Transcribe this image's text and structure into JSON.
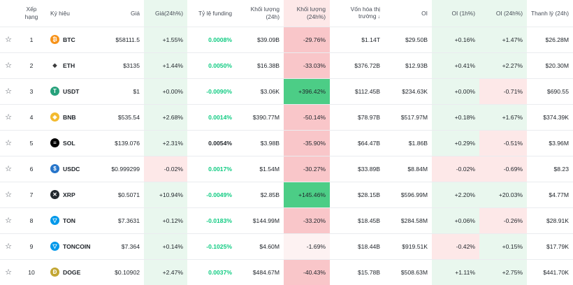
{
  "headers": {
    "rank": "Xếp hạng",
    "symbol": "Ký hiệu",
    "price": "Giá",
    "price_change": "Giá(24h%)",
    "funding": "Tỷ lệ funding",
    "volume": "Khối lượng (24h)",
    "volume_change": "Khối lượng (24h%)",
    "mcap_line1": "Vốn hóa thị",
    "mcap_line2": "trường",
    "oi": "OI",
    "oi_1h": "OI (1h%)",
    "oi_24h": "OI (24h%)",
    "liq": "Thanh lý (24h)"
  },
  "rows": [
    {
      "rank": "1",
      "symbol": "BTC",
      "price": "$58111.5",
      "price_change": "+1.55%",
      "funding": "0.0008%",
      "volume": "$39.09B",
      "volume_change": "-29.76%",
      "mcap": "$1.14T",
      "oi": "$29.50B",
      "oi_1h": "+0.16%",
      "oi_24h": "+1.47%",
      "liq": "$26.28M",
      "icon": "btc-icon",
      "color": "#f7931a",
      "glyph": "₿"
    },
    {
      "rank": "2",
      "symbol": "ETH",
      "price": "$3135",
      "price_change": "+1.44%",
      "funding": "0.0050%",
      "volume": "$16.38B",
      "volume_change": "-33.03%",
      "mcap": "$376.72B",
      "oi": "$12.93B",
      "oi_1h": "+0.41%",
      "oi_24h": "+2.27%",
      "liq": "$20.30M",
      "icon": "eth-icon",
      "color": "#ffffff",
      "glyph": "◆"
    },
    {
      "rank": "3",
      "symbol": "USDT",
      "price": "$1",
      "price_change": "+0.00%",
      "funding": "-0.0090%",
      "volume": "$3.06K",
      "volume_change": "+396.42%",
      "mcap": "$112.45B",
      "oi": "$234.63K",
      "oi_1h": "+0.00%",
      "oi_24h": "-0.71%",
      "liq": "$690.55",
      "icon": "usdt-icon",
      "color": "#26a17b",
      "glyph": "T"
    },
    {
      "rank": "4",
      "symbol": "BNB",
      "price": "$535.54",
      "price_change": "+2.68%",
      "funding": "0.0014%",
      "volume": "$390.77M",
      "volume_change": "-50.14%",
      "mcap": "$78.97B",
      "oi": "$517.97M",
      "oi_1h": "+0.18%",
      "oi_24h": "+1.67%",
      "liq": "$374.39K",
      "icon": "bnb-icon",
      "color": "#f3ba2f",
      "glyph": "◈"
    },
    {
      "rank": "5",
      "symbol": "SOL",
      "price": "$139.076",
      "price_change": "+2.31%",
      "funding": "0.0054%",
      "volume": "$3.98B",
      "volume_change": "-35.90%",
      "mcap": "$64.47B",
      "oi": "$1.86B",
      "oi_1h": "+0.29%",
      "oi_24h": "-0.51%",
      "liq": "$3.96M",
      "icon": "sol-icon",
      "color": "#000000",
      "glyph": "≡"
    },
    {
      "rank": "6",
      "symbol": "USDC",
      "price": "$0.999299",
      "price_change": "-0.02%",
      "funding": "0.0017%",
      "volume": "$1.54M",
      "volume_change": "-30.27%",
      "mcap": "$33.89B",
      "oi": "$8.84M",
      "oi_1h": "-0.02%",
      "oi_24h": "-0.69%",
      "liq": "$8.23",
      "icon": "usdc-icon",
      "color": "#2775ca",
      "glyph": "$"
    },
    {
      "rank": "7",
      "symbol": "XRP",
      "price": "$0.5071",
      "price_change": "+10.94%",
      "funding": "-0.0049%",
      "volume": "$2.85B",
      "volume_change": "+145.46%",
      "mcap": "$28.15B",
      "oi": "$596.99M",
      "oi_1h": "+2.20%",
      "oi_24h": "+20.03%",
      "liq": "$4.77M",
      "icon": "xrp-icon",
      "color": "#23292f",
      "glyph": "✕"
    },
    {
      "rank": "8",
      "symbol": "TON",
      "price": "$7.3631",
      "price_change": "+0.12%",
      "funding": "-0.0183%",
      "volume": "$144.99M",
      "volume_change": "-33.20%",
      "mcap": "$18.45B",
      "oi": "$284.58M",
      "oi_1h": "+0.06%",
      "oi_24h": "-0.26%",
      "liq": "$28.91K",
      "icon": "ton-icon",
      "color": "#0098ea",
      "glyph": "▽"
    },
    {
      "rank": "9",
      "symbol": "TONCOIN",
      "price": "$7.364",
      "price_change": "+0.14%",
      "funding": "-0.1025%",
      "volume": "$4.60M",
      "volume_change": "-1.69%",
      "mcap": "$18.44B",
      "oi": "$919.51K",
      "oi_1h": "-0.42%",
      "oi_24h": "+0.15%",
      "liq": "$17.79K",
      "icon": "toncoin-icon",
      "color": "#0098ea",
      "glyph": "▽"
    },
    {
      "rank": "10",
      "symbol": "DOGE",
      "price": "$0.10902",
      "price_change": "+2.47%",
      "funding": "0.0037%",
      "volume": "$484.67M",
      "volume_change": "-40.43%",
      "mcap": "$15.78B",
      "oi": "$508.63M",
      "oi_1h": "+1.11%",
      "oi_24h": "+2.75%",
      "liq": "$441.70K",
      "icon": "doge-icon",
      "color": "#c2a633",
      "glyph": "Ð"
    }
  ],
  "colors": {
    "green_text": "#0ecb81",
    "light_green": "#e9f7ee",
    "light_red": "#fde8e8",
    "red": "#f9c6c9",
    "strong_green": "#4ccd86"
  }
}
